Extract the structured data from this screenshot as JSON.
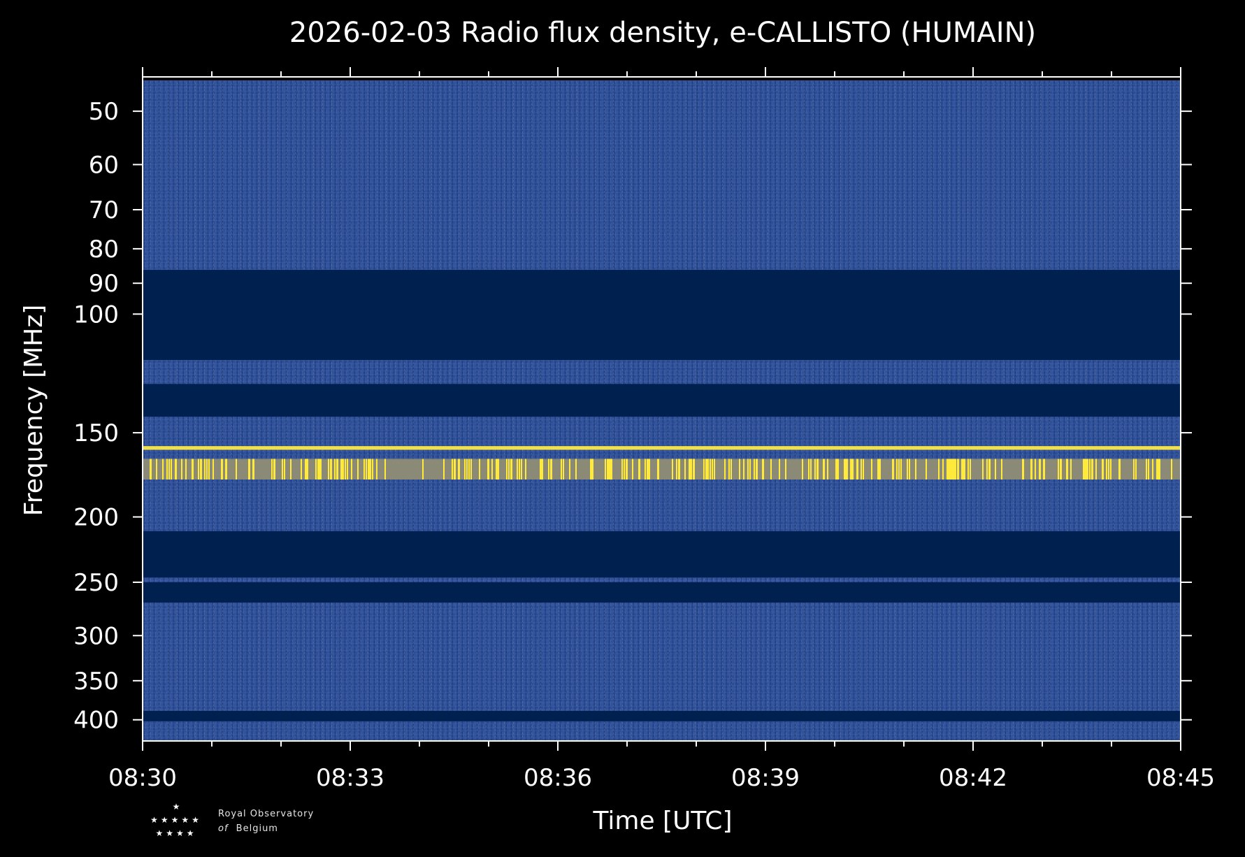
{
  "chart_data": {
    "type": "heatmap",
    "title": "2026-02-03 Radio flux density, e-CALLISTO (HUMAIN)",
    "xlabel": "Time [UTC]",
    "ylabel": "Frequency [MHz]",
    "x_range": [
      "08:30",
      "08:45"
    ],
    "y_range": [
      45,
      430
    ],
    "y_scale": "log",
    "y_inverted": true,
    "x_ticks": [
      "08:30",
      "08:33",
      "08:36",
      "08:39",
      "08:42",
      "08:45"
    ],
    "y_ticks": [
      50,
      60,
      70,
      80,
      90,
      100,
      150,
      200,
      250,
      300,
      350,
      400
    ],
    "colormap": [
      "#002050",
      "#2a4f9c",
      "#8c8c78",
      "#ffe94a"
    ],
    "colors": {
      "background": "#000000",
      "axis": "#ffffff",
      "low": "#002050",
      "mid": "#2a4f9c",
      "high": "#ffe94a"
    },
    "bands": [
      {
        "f_min": 45,
        "f_max": 86,
        "level": "medium"
      },
      {
        "f_min": 86,
        "f_max": 117,
        "level": "empty"
      },
      {
        "f_min": 117,
        "f_max": 127,
        "level": "medium"
      },
      {
        "f_min": 127,
        "f_max": 142,
        "level": "empty"
      },
      {
        "f_min": 142,
        "f_max": 210,
        "level": "medium"
      },
      {
        "f_min": 157,
        "f_max": 159,
        "level": "high"
      },
      {
        "f_min": 164,
        "f_max": 176,
        "level": "high"
      },
      {
        "f_min": 210,
        "f_max": 246,
        "level": "empty"
      },
      {
        "f_min": 246,
        "f_max": 250,
        "level": "medium"
      },
      {
        "f_min": 250,
        "f_max": 268,
        "level": "empty"
      },
      {
        "f_min": 268,
        "f_max": 388,
        "level": "medium"
      },
      {
        "f_min": 388,
        "f_max": 402,
        "level": "empty"
      },
      {
        "f_min": 402,
        "f_max": 430,
        "level": "medium"
      }
    ]
  },
  "logo": {
    "line1": "Royal Observatory",
    "line2_italic": "of",
    "line2": "Belgium"
  }
}
